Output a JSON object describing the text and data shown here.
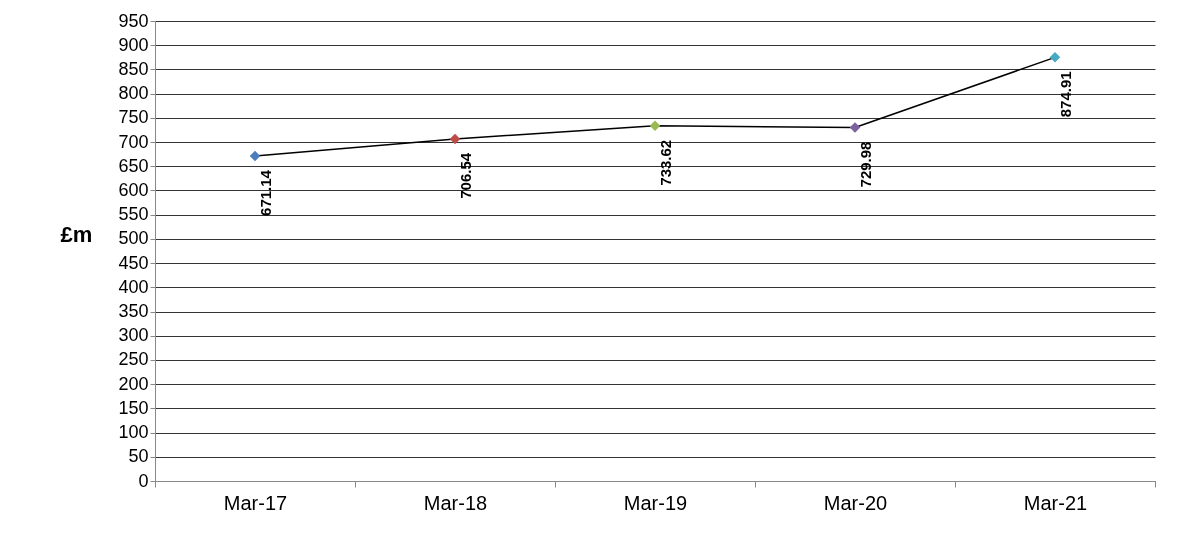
{
  "chart_data": {
    "type": "line",
    "ylabel": "£m",
    "categories": [
      "Mar-17",
      "Mar-18",
      "Mar-19",
      "Mar-20",
      "Mar-21"
    ],
    "series": [
      {
        "color": "#000000",
        "values": [
          671.14,
          706.54,
          733.62,
          729.98,
          874.91
        ],
        "colors": [
          "#4a7ebb",
          "#be4b48",
          "#98b954",
          "#7d60a0",
          "#46aac5"
        ]
      }
    ],
    "ylim": [
      0,
      950
    ],
    "yticks": [
      0,
      50,
      100,
      150,
      200,
      250,
      300,
      350,
      400,
      450,
      500,
      550,
      600,
      650,
      700,
      750,
      800,
      850,
      900,
      950
    ],
    "grid": "y",
    "marker": "diamond",
    "line_style": "solid",
    "data_labels": true
  }
}
